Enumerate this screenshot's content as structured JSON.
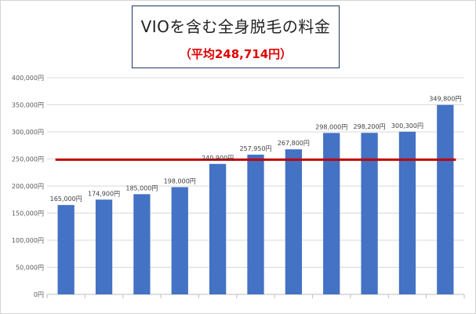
{
  "title_box": {
    "main": "VIOを含む全身脱毛の料金",
    "sub": "（平均248,714円）"
  },
  "chart_data": {
    "type": "bar",
    "title": "VIOを含む全身脱毛の料金",
    "subtitle": "（平均248,714円）",
    "categories": [
      "",
      "",
      "",
      "",
      "",
      "",
      "",
      "",
      "",
      "",
      ""
    ],
    "values": [
      165000,
      174900,
      185000,
      198000,
      240900,
      257950,
      267800,
      298000,
      298200,
      300300,
      349800
    ],
    "data_labels": [
      "165,000円",
      "174,900円",
      "185,000円",
      "198,000円",
      "240,900円",
      "257,950円",
      "267,800円",
      "298,000円",
      "298,200円",
      "300,300円",
      "349,800円"
    ],
    "y_ticks": [
      0,
      50000,
      100000,
      150000,
      200000,
      250000,
      300000,
      350000,
      400000
    ],
    "y_tick_labels": [
      "0円",
      "50,000円",
      "100,000円",
      "150,000円",
      "200,000円",
      "250,000円",
      "300,000円",
      "350,000円",
      "400,000円"
    ],
    "ylim": [
      0,
      400000
    ],
    "average": 248714,
    "grid": true,
    "legend": "none",
    "colors": {
      "bar": "#4472c4",
      "average_line": "#c00000",
      "grid": "#d9d9d9",
      "title_border": "#1f3864",
      "subtitle": "#e00000"
    }
  }
}
